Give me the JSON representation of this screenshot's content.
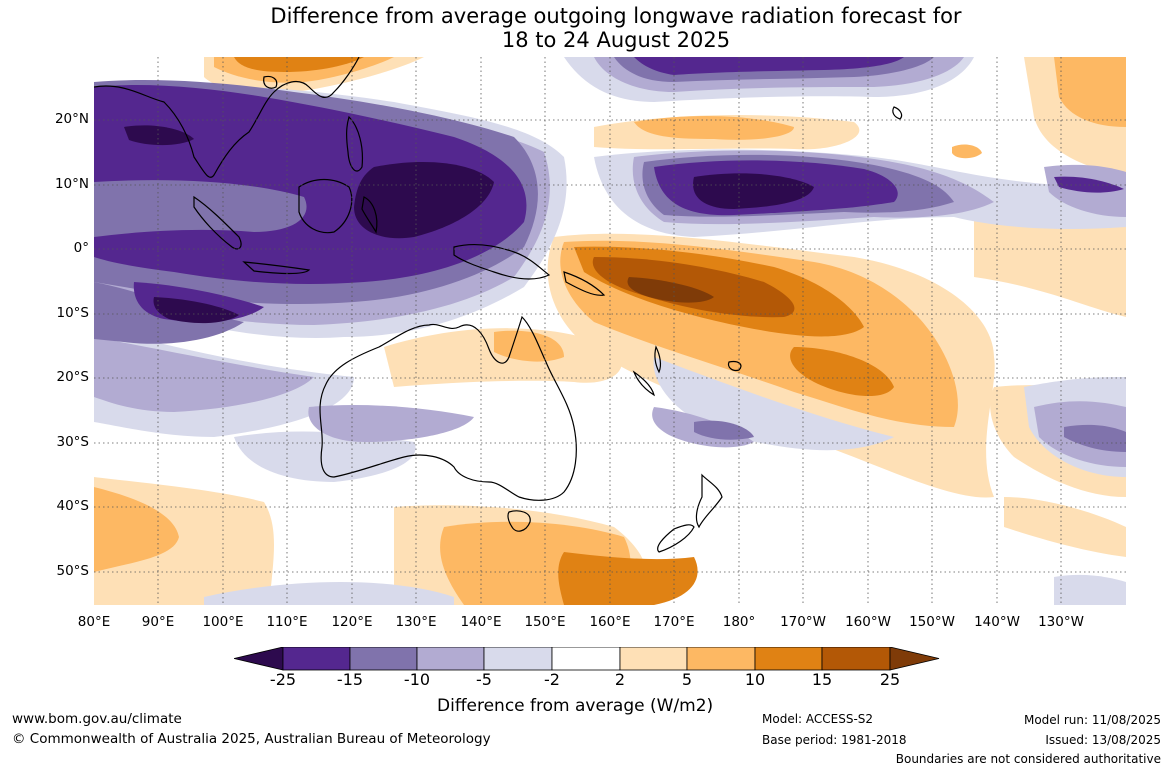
{
  "header": {
    "title_line1": "Difference from average outgoing longwave radiation forecast for",
    "title_line2": "18 to 24 August 2025"
  },
  "map": {
    "lat_labels": [
      "20°N",
      "10°N",
      "0°",
      "10°S",
      "20°S",
      "30°S",
      "40°S",
      "50°S"
    ],
    "lon_labels": [
      "80°E",
      "90°E",
      "100°E",
      "110°E",
      "120°E",
      "130°E",
      "140°E",
      "150°E",
      "160°E",
      "170°E",
      "180°",
      "170°W",
      "160°W",
      "150°W",
      "140°W",
      "130°W"
    ]
  },
  "legend": {
    "tick_labels": [
      "-25",
      "-15",
      "-10",
      "-5",
      "-2",
      "2",
      "5",
      "10",
      "15",
      "25"
    ],
    "title": "Difference from average (W/m2)",
    "colors": {
      "below_-25": "#2d0a4e",
      "-25_-15": "#54278f",
      "-15_-10": "#8073ac",
      "-10_-5": "#b2abd2",
      "-5_-2": "#d8daeb",
      "-2_2": "#ffffff",
      "2_5": "#fee0b6",
      "5_10": "#fdb863",
      "10_15": "#e08214",
      "15_25": "#b35806",
      "above_25": "#7f3b08"
    }
  },
  "footer": {
    "url": "www.bom.gov.au/climate",
    "copyright": "© Commonwealth of Australia 2025, Australian Bureau of Meteorology",
    "model": "Model: ACCESS-S2",
    "base_period": "Base period: 1981-2018",
    "model_run": "Model run: 11/08/2025",
    "issued": "Issued: 13/08/2025",
    "disclaimer": "Boundaries are not considered authoritative"
  }
}
